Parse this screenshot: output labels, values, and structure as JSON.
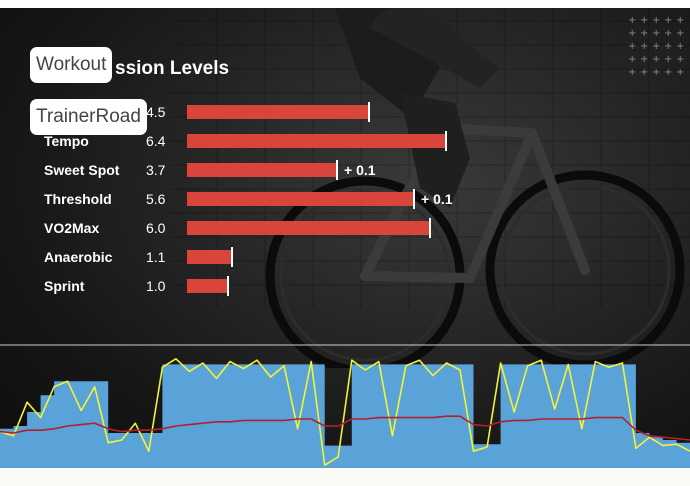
{
  "panel": {
    "title": "ssion Levels",
    "chips": {
      "top": "Workout",
      "bottom": "TrainerRoad"
    }
  },
  "zones": [
    {
      "name": "",
      "level_text": "4.5",
      "value": 4.5,
      "delta": ""
    },
    {
      "name": "Tempo",
      "level_text": "6.4",
      "value": 6.4,
      "delta": ""
    },
    {
      "name": "Sweet Spot",
      "level_text": "3.7",
      "value": 3.7,
      "delta": "+ 0.1"
    },
    {
      "name": "Threshold",
      "level_text": "5.6",
      "value": 5.6,
      "delta": "+ 0.1"
    },
    {
      "name": "VO2Max",
      "level_text": "6.0",
      "value": 6.0,
      "delta": ""
    },
    {
      "name": "Anaerobic",
      "level_text": "1.1",
      "value": 1.1,
      "delta": ""
    },
    {
      "name": "Sprint",
      "level_text": "1.0",
      "value": 1.0,
      "delta": ""
    }
  ],
  "colors": {
    "bar": "#d9453a",
    "target_area": "#5aa3d8",
    "power_line": "#f2f23a",
    "heart_rate_line": "#b3202a",
    "reference_line": "#cfcfcf"
  },
  "chart_data": {
    "type": "area",
    "series": [
      {
        "values": [
          28,
          30,
          40,
          52,
          62,
          62,
          62,
          62,
          25,
          25,
          25,
          25,
          74,
          74,
          74,
          74,
          74,
          74,
          74,
          74,
          74,
          74,
          74,
          74,
          16,
          16,
          74,
          74,
          74,
          74,
          74,
          74,
          74,
          74,
          74,
          17,
          17,
          74,
          74,
          74,
          74,
          74,
          74,
          74,
          74,
          74,
          74,
          25,
          22,
          20,
          18,
          16
        ]
      },
      {
        "values": [
          26,
          23,
          47,
          36,
          58,
          62,
          41,
          58,
          18,
          20,
          32,
          12,
          72,
          78,
          69,
          75,
          64,
          76,
          71,
          77,
          65,
          73,
          28,
          76,
          2,
          8,
          77,
          70,
          76,
          23,
          73,
          77,
          66,
          75,
          70,
          12,
          15,
          75,
          40,
          73,
          77,
          42,
          74,
          28,
          76,
          72,
          75,
          14,
          22,
          16,
          17,
          12
        ]
      },
      {
        "values": [
          26,
          25,
          27,
          27,
          28,
          30,
          31,
          32,
          28,
          26,
          27,
          27,
          28,
          30,
          31,
          32,
          33,
          33,
          34,
          34,
          34,
          34,
          35,
          35,
          30,
          30,
          35,
          35,
          36,
          36,
          36,
          36,
          36,
          37,
          37,
          31,
          30,
          33,
          34,
          34,
          35,
          35,
          35,
          35,
          36,
          36,
          36,
          27,
          23,
          22,
          21,
          20
        ]
      }
    ],
    "ylim": [
      0,
      100
    ]
  }
}
